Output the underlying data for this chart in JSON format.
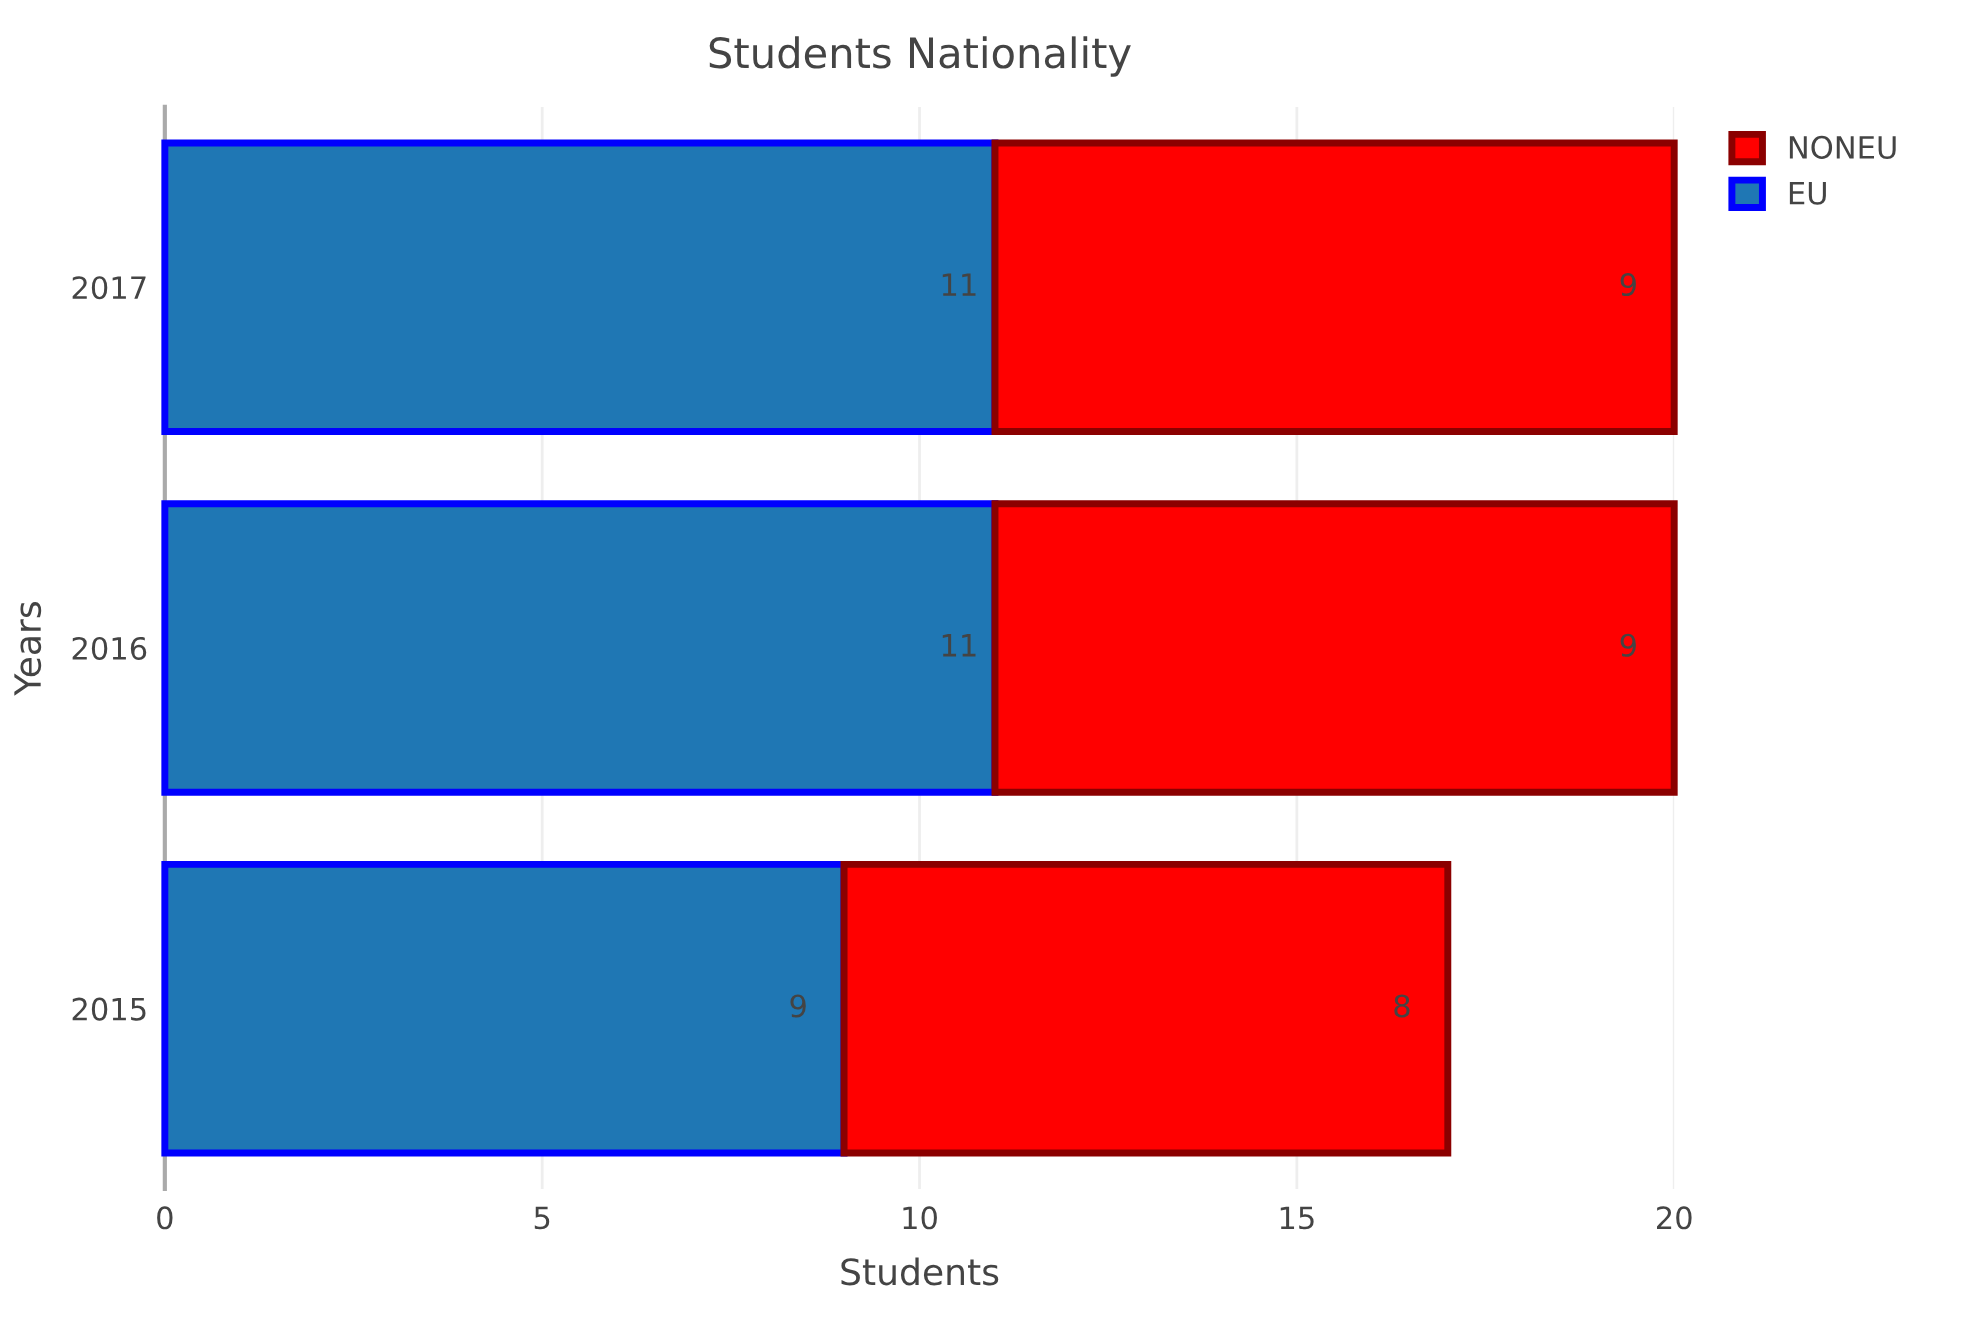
{
  "chart_data": {
    "type": "bar",
    "orientation": "horizontal",
    "stacked": true,
    "title": "Students Nationality",
    "xlabel": "Students",
    "ylabel": "Years",
    "categories": [
      "2017",
      "2016",
      "2015"
    ],
    "series": [
      {
        "name": "EU",
        "color": "#1f77b4",
        "values": [
          11,
          11,
          9
        ]
      },
      {
        "name": "NONEU",
        "color": "#ff0000",
        "values": [
          9,
          9,
          8
        ]
      }
    ],
    "xlim": [
      0,
      20
    ],
    "xticks": [
      0,
      5,
      10,
      15,
      20
    ],
    "grid": "x",
    "legend": "top right",
    "data_labels": true
  }
}
